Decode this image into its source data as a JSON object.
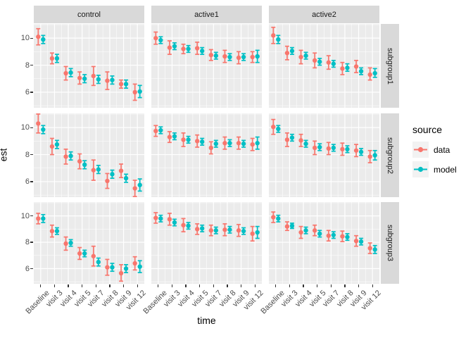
{
  "chart_data": {
    "type": "pointrange",
    "description": "Faceted grid of point estimates with error bars, data vs model, by treatment arm (columns) and subgroup (rows)",
    "xlabel": "time",
    "ylabel": "est",
    "legend_title": "source",
    "x_categories": [
      "Baseline",
      "visit 3",
      "visit 4",
      "visit 5",
      "visit 7",
      "visit 8",
      "visit 9",
      "visit 12"
    ],
    "facet_cols": [
      "control",
      "active1",
      "active2"
    ],
    "facet_rows": [
      "subgroup1",
      "subgroup2",
      "subgroup3"
    ],
    "y_ticks": [
      6,
      8,
      10
    ],
    "ylim": [
      4.85,
      11.05
    ],
    "grid": "white major+minor gridlines on grey panel",
    "legend_position": "right",
    "series": [
      {
        "name": "data",
        "color": "#F8766D"
      },
      {
        "name": "model",
        "color": "#00BFC4"
      }
    ],
    "colors": {
      "panel_bg": "#EBEBEB",
      "strip_bg": "#D9D9D9",
      "grid": "#FFFFFF",
      "tick_text": "#4D4D4D",
      "data": "#F8766D",
      "model": "#00BFC4"
    },
    "panels": [
      {
        "col": "control",
        "row": "subgroup1",
        "data": {
          "est": [
            10.1,
            8.5,
            7.4,
            7.05,
            7.2,
            6.85,
            6.6,
            6.0
          ],
          "lo": [
            9.5,
            8.1,
            6.9,
            6.6,
            6.5,
            6.2,
            6.3,
            5.4
          ],
          "hi": [
            10.7,
            8.9,
            7.9,
            7.5,
            7.9,
            7.5,
            6.9,
            6.6
          ]
        },
        "model": {
          "est": [
            9.9,
            8.5,
            7.45,
            7.0,
            6.95,
            6.9,
            6.6,
            6.05
          ],
          "lo": [
            9.6,
            8.2,
            7.15,
            6.7,
            6.65,
            6.6,
            6.3,
            5.6
          ],
          "hi": [
            10.2,
            8.8,
            7.75,
            7.3,
            7.25,
            7.2,
            6.9,
            6.5
          ]
        }
      },
      {
        "col": "active1",
        "row": "subgroup1",
        "data": {
          "est": [
            10.0,
            9.3,
            9.2,
            9.25,
            8.75,
            8.65,
            8.55,
            8.6
          ],
          "lo": [
            9.55,
            8.8,
            8.85,
            8.8,
            8.35,
            8.2,
            8.1,
            8.2
          ],
          "hi": [
            10.45,
            9.8,
            9.55,
            9.7,
            9.15,
            9.1,
            9.0,
            9.0
          ]
        },
        "model": {
          "est": [
            9.85,
            9.4,
            9.2,
            9.05,
            8.7,
            8.6,
            8.6,
            8.65
          ],
          "lo": [
            9.6,
            9.15,
            8.95,
            8.8,
            8.45,
            8.35,
            8.35,
            8.2
          ],
          "hi": [
            10.1,
            9.65,
            9.45,
            9.3,
            8.95,
            8.85,
            8.85,
            9.1
          ]
        }
      },
      {
        "col": "active2",
        "row": "subgroup1",
        "data": {
          "est": [
            10.2,
            8.9,
            8.6,
            8.35,
            8.2,
            7.75,
            7.9,
            7.3
          ],
          "lo": [
            9.6,
            8.4,
            8.1,
            7.8,
            7.7,
            7.3,
            7.45,
            6.9
          ],
          "hi": [
            10.8,
            9.4,
            9.1,
            8.9,
            8.7,
            8.2,
            8.35,
            7.8
          ]
        },
        "model": {
          "est": [
            9.9,
            9.05,
            8.7,
            8.25,
            8.1,
            7.8,
            7.55,
            7.4
          ],
          "lo": [
            9.6,
            8.8,
            8.45,
            8.0,
            7.85,
            7.55,
            7.3,
            7.1
          ],
          "hi": [
            10.2,
            9.3,
            8.95,
            8.5,
            8.35,
            8.1,
            7.8,
            7.75
          ]
        }
      },
      {
        "col": "control",
        "row": "subgroup2",
        "data": {
          "est": [
            10.3,
            8.6,
            7.85,
            7.5,
            6.85,
            6.05,
            6.8,
            5.5
          ],
          "lo": [
            9.6,
            8.0,
            7.3,
            6.95,
            6.1,
            5.5,
            6.3,
            4.9
          ],
          "hi": [
            11.0,
            9.2,
            8.4,
            8.05,
            7.6,
            6.6,
            7.3,
            6.1
          ]
        },
        "model": {
          "est": [
            9.85,
            8.75,
            7.9,
            7.25,
            6.9,
            6.55,
            6.25,
            5.75
          ],
          "lo": [
            9.55,
            8.45,
            7.6,
            6.95,
            6.6,
            6.25,
            5.95,
            5.3
          ],
          "hi": [
            10.15,
            9.05,
            8.2,
            7.55,
            7.2,
            6.85,
            6.55,
            6.2
          ]
        }
      },
      {
        "col": "active1",
        "row": "subgroup2",
        "data": {
          "est": [
            9.75,
            9.3,
            9.1,
            9.0,
            8.5,
            8.85,
            8.85,
            8.75
          ],
          "lo": [
            9.35,
            8.9,
            8.6,
            8.55,
            8.05,
            8.4,
            8.4,
            8.3
          ],
          "hi": [
            10.15,
            9.7,
            9.6,
            9.45,
            8.95,
            9.3,
            9.3,
            9.2
          ]
        },
        "model": {
          "est": [
            9.8,
            9.35,
            9.1,
            8.95,
            8.8,
            8.85,
            8.8,
            8.85
          ],
          "lo": [
            9.55,
            9.1,
            8.85,
            8.7,
            8.55,
            8.6,
            8.55,
            8.4
          ],
          "hi": [
            10.05,
            9.6,
            9.35,
            9.2,
            9.05,
            9.1,
            9.05,
            9.3
          ]
        }
      },
      {
        "col": "active2",
        "row": "subgroup2",
        "data": {
          "est": [
            10.05,
            9.1,
            9.05,
            8.5,
            8.45,
            8.4,
            8.3,
            7.85
          ],
          "lo": [
            9.5,
            8.6,
            8.6,
            8.0,
            8.0,
            7.95,
            7.85,
            7.4
          ],
          "hi": [
            10.6,
            9.6,
            9.5,
            9.0,
            8.9,
            8.85,
            8.75,
            8.3
          ]
        },
        "model": {
          "est": [
            9.9,
            9.25,
            8.8,
            8.55,
            8.5,
            8.4,
            8.2,
            7.95
          ],
          "lo": [
            9.65,
            9.0,
            8.55,
            8.3,
            8.25,
            8.15,
            7.95,
            7.6
          ],
          "hi": [
            10.15,
            9.5,
            9.05,
            8.8,
            8.75,
            8.65,
            8.45,
            8.3
          ]
        }
      },
      {
        "col": "control",
        "row": "subgroup3",
        "data": {
          "est": [
            9.8,
            8.85,
            7.9,
            7.15,
            6.95,
            6.1,
            5.65,
            6.4
          ],
          "lo": [
            9.4,
            8.4,
            7.4,
            6.7,
            6.2,
            5.5,
            5.05,
            5.9
          ],
          "hi": [
            10.2,
            9.3,
            8.4,
            7.6,
            7.7,
            6.7,
            6.3,
            6.9
          ]
        },
        "model": {
          "est": [
            9.8,
            8.85,
            7.95,
            7.15,
            6.5,
            6.1,
            6.0,
            6.15
          ],
          "lo": [
            9.5,
            8.6,
            7.7,
            6.9,
            6.2,
            5.8,
            5.7,
            5.7
          ],
          "hi": [
            10.1,
            9.1,
            8.2,
            7.4,
            6.8,
            6.4,
            6.3,
            6.6
          ]
        }
      },
      {
        "col": "active1",
        "row": "subgroup3",
        "data": {
          "est": [
            9.85,
            9.75,
            9.3,
            9.0,
            8.9,
            8.95,
            8.9,
            8.65
          ],
          "lo": [
            9.45,
            9.3,
            8.8,
            8.6,
            8.5,
            8.5,
            8.45,
            8.1
          ],
          "hi": [
            10.25,
            10.2,
            9.8,
            9.4,
            9.3,
            9.4,
            9.35,
            9.2
          ]
        },
        "model": {
          "est": [
            9.8,
            9.5,
            9.25,
            9.05,
            8.9,
            8.95,
            8.85,
            8.75
          ],
          "lo": [
            9.55,
            9.25,
            9.0,
            8.8,
            8.65,
            8.7,
            8.6,
            8.3
          ],
          "hi": [
            10.05,
            9.75,
            9.5,
            9.3,
            9.15,
            9.2,
            9.1,
            9.2
          ]
        }
      },
      {
        "col": "active2",
        "row": "subgroup3",
        "data": {
          "est": [
            9.9,
            9.2,
            8.75,
            8.9,
            8.5,
            8.45,
            8.1,
            7.55
          ],
          "lo": [
            9.5,
            8.9,
            8.3,
            8.5,
            8.1,
            8.05,
            7.7,
            7.15
          ],
          "hi": [
            10.3,
            9.55,
            9.2,
            9.3,
            8.9,
            8.85,
            8.5,
            7.95
          ]
        },
        "model": {
          "est": [
            9.8,
            9.25,
            8.9,
            8.65,
            8.55,
            8.4,
            8.05,
            7.45
          ],
          "lo": [
            9.55,
            9.05,
            8.65,
            8.4,
            8.3,
            8.15,
            7.8,
            7.15
          ],
          "hi": [
            10.05,
            9.45,
            9.15,
            8.9,
            8.8,
            8.65,
            8.3,
            7.75
          ]
        }
      }
    ]
  }
}
